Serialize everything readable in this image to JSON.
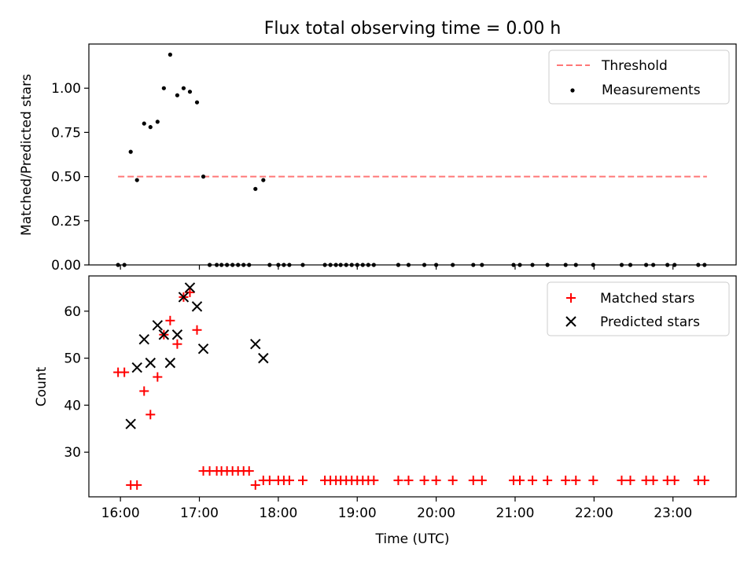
{
  "figure": {
    "title": "Flux total observing time = 0.00 h"
  },
  "chart_data": [
    {
      "type": "scatter",
      "title": "Flux total observing time = 0.00 h",
      "xlabel": "",
      "ylabel": "Matched/Predicted stars",
      "xlim": [
        15.6,
        23.8
      ],
      "ylim": [
        0,
        1.25
      ],
      "yticks": [
        0.0,
        0.25,
        0.5,
        0.75,
        1.0
      ],
      "ytick_labels": [
        "0.00",
        "0.25",
        "0.50",
        "0.75",
        "1.00"
      ],
      "xticks": [
        16,
        17,
        18,
        19,
        20,
        21,
        22,
        23
      ],
      "show_xtick_labels": false,
      "legend_position": "upper right",
      "threshold": {
        "name": "Threshold",
        "value": 0.5,
        "x_range": [
          15.97,
          23.43
        ],
        "color": "#ff7777",
        "style": "dashed"
      },
      "series": [
        {
          "name": "Measurements",
          "marker": "dot",
          "color": "#000000",
          "x": [
            15.97,
            16.05,
            16.13,
            16.21,
            16.3,
            16.38,
            16.47,
            16.55,
            16.63,
            16.72,
            16.8,
            16.88,
            16.97,
            17.05,
            17.13,
            17.22,
            17.28,
            17.35,
            17.42,
            17.49,
            17.56,
            17.63,
            17.71,
            17.81,
            17.89,
            18.0,
            18.07,
            18.14,
            18.31,
            18.59,
            18.66,
            18.73,
            18.79,
            18.86,
            18.93,
            19.0,
            19.07,
            19.14,
            19.21,
            19.52,
            19.65,
            19.85,
            20.0,
            20.21,
            20.47,
            20.58,
            20.98,
            21.06,
            21.22,
            21.41,
            21.64,
            21.77,
            21.99,
            22.35,
            22.46,
            22.66,
            22.75,
            22.93,
            23.02,
            23.32,
            23.4
          ],
          "y": [
            0,
            0,
            0.64,
            0.48,
            0.8,
            0.78,
            0.81,
            1.0,
            1.19,
            0.96,
            1.0,
            0.98,
            0.92,
            0.5,
            0,
            0,
            0,
            0,
            0,
            0,
            0,
            0,
            0.43,
            0.48,
            0,
            0,
            0,
            0,
            0,
            0,
            0,
            0,
            0,
            0,
            0,
            0,
            0,
            0,
            0,
            0,
            0,
            0,
            0,
            0,
            0,
            0,
            0,
            0,
            0,
            0,
            0,
            0,
            0,
            0,
            0,
            0,
            0,
            0,
            0,
            0,
            0
          ]
        }
      ]
    },
    {
      "type": "scatter",
      "title": "",
      "xlabel": "Time (UTC)",
      "ylabel": "Count",
      "xlim": [
        15.6,
        23.8
      ],
      "ylim": [
        20.5,
        67.5
      ],
      "yticks": [
        30,
        40,
        50,
        60
      ],
      "ytick_labels": [
        "30",
        "40",
        "50",
        "60"
      ],
      "xticks": [
        16,
        17,
        18,
        19,
        20,
        21,
        22,
        23
      ],
      "xtick_labels": [
        "16:00",
        "17:00",
        "18:00",
        "19:00",
        "20:00",
        "21:00",
        "22:00",
        "23:00"
      ],
      "legend_position": "upper right",
      "series": [
        {
          "name": "Matched stars",
          "marker": "plus",
          "color": "#ff0000",
          "x": [
            15.97,
            16.05,
            16.13,
            16.21,
            16.3,
            16.38,
            16.47,
            16.55,
            16.63,
            16.72,
            16.8,
            16.88,
            16.97,
            17.05,
            17.13,
            17.22,
            17.28,
            17.35,
            17.42,
            17.49,
            17.56,
            17.63,
            17.71,
            17.81,
            17.89,
            18.0,
            18.07,
            18.14,
            18.31,
            18.59,
            18.66,
            18.73,
            18.79,
            18.86,
            18.93,
            19.0,
            19.07,
            19.14,
            19.21,
            19.52,
            19.65,
            19.85,
            20.0,
            20.21,
            20.47,
            20.58,
            20.98,
            21.06,
            21.22,
            21.41,
            21.64,
            21.77,
            21.99,
            22.35,
            22.46,
            22.66,
            22.75,
            22.93,
            23.02,
            23.32,
            23.4
          ],
          "y": [
            47,
            47,
            23,
            23,
            43,
            38,
            46,
            55,
            58,
            53,
            63,
            64,
            56,
            26,
            26,
            26,
            26,
            26,
            26,
            26,
            26,
            26,
            23,
            24,
            24,
            24,
            24,
            24,
            24,
            24,
            24,
            24,
            24,
            24,
            24,
            24,
            24,
            24,
            24,
            24,
            24,
            24,
            24,
            24,
            24,
            24,
            24,
            24,
            24,
            24,
            24,
            24,
            24,
            24,
            24,
            24,
            24,
            24,
            24,
            24,
            24
          ]
        },
        {
          "name": "Predicted stars",
          "marker": "x",
          "color": "#000000",
          "x": [
            16.13,
            16.21,
            16.3,
            16.38,
            16.47,
            16.55,
            16.63,
            16.72,
            16.8,
            16.88,
            16.97,
            17.05,
            17.71,
            17.81
          ],
          "y": [
            36,
            48,
            54,
            49,
            57,
            55,
            49,
            55,
            63,
            65,
            61,
            52,
            53,
            50
          ]
        }
      ]
    }
  ]
}
